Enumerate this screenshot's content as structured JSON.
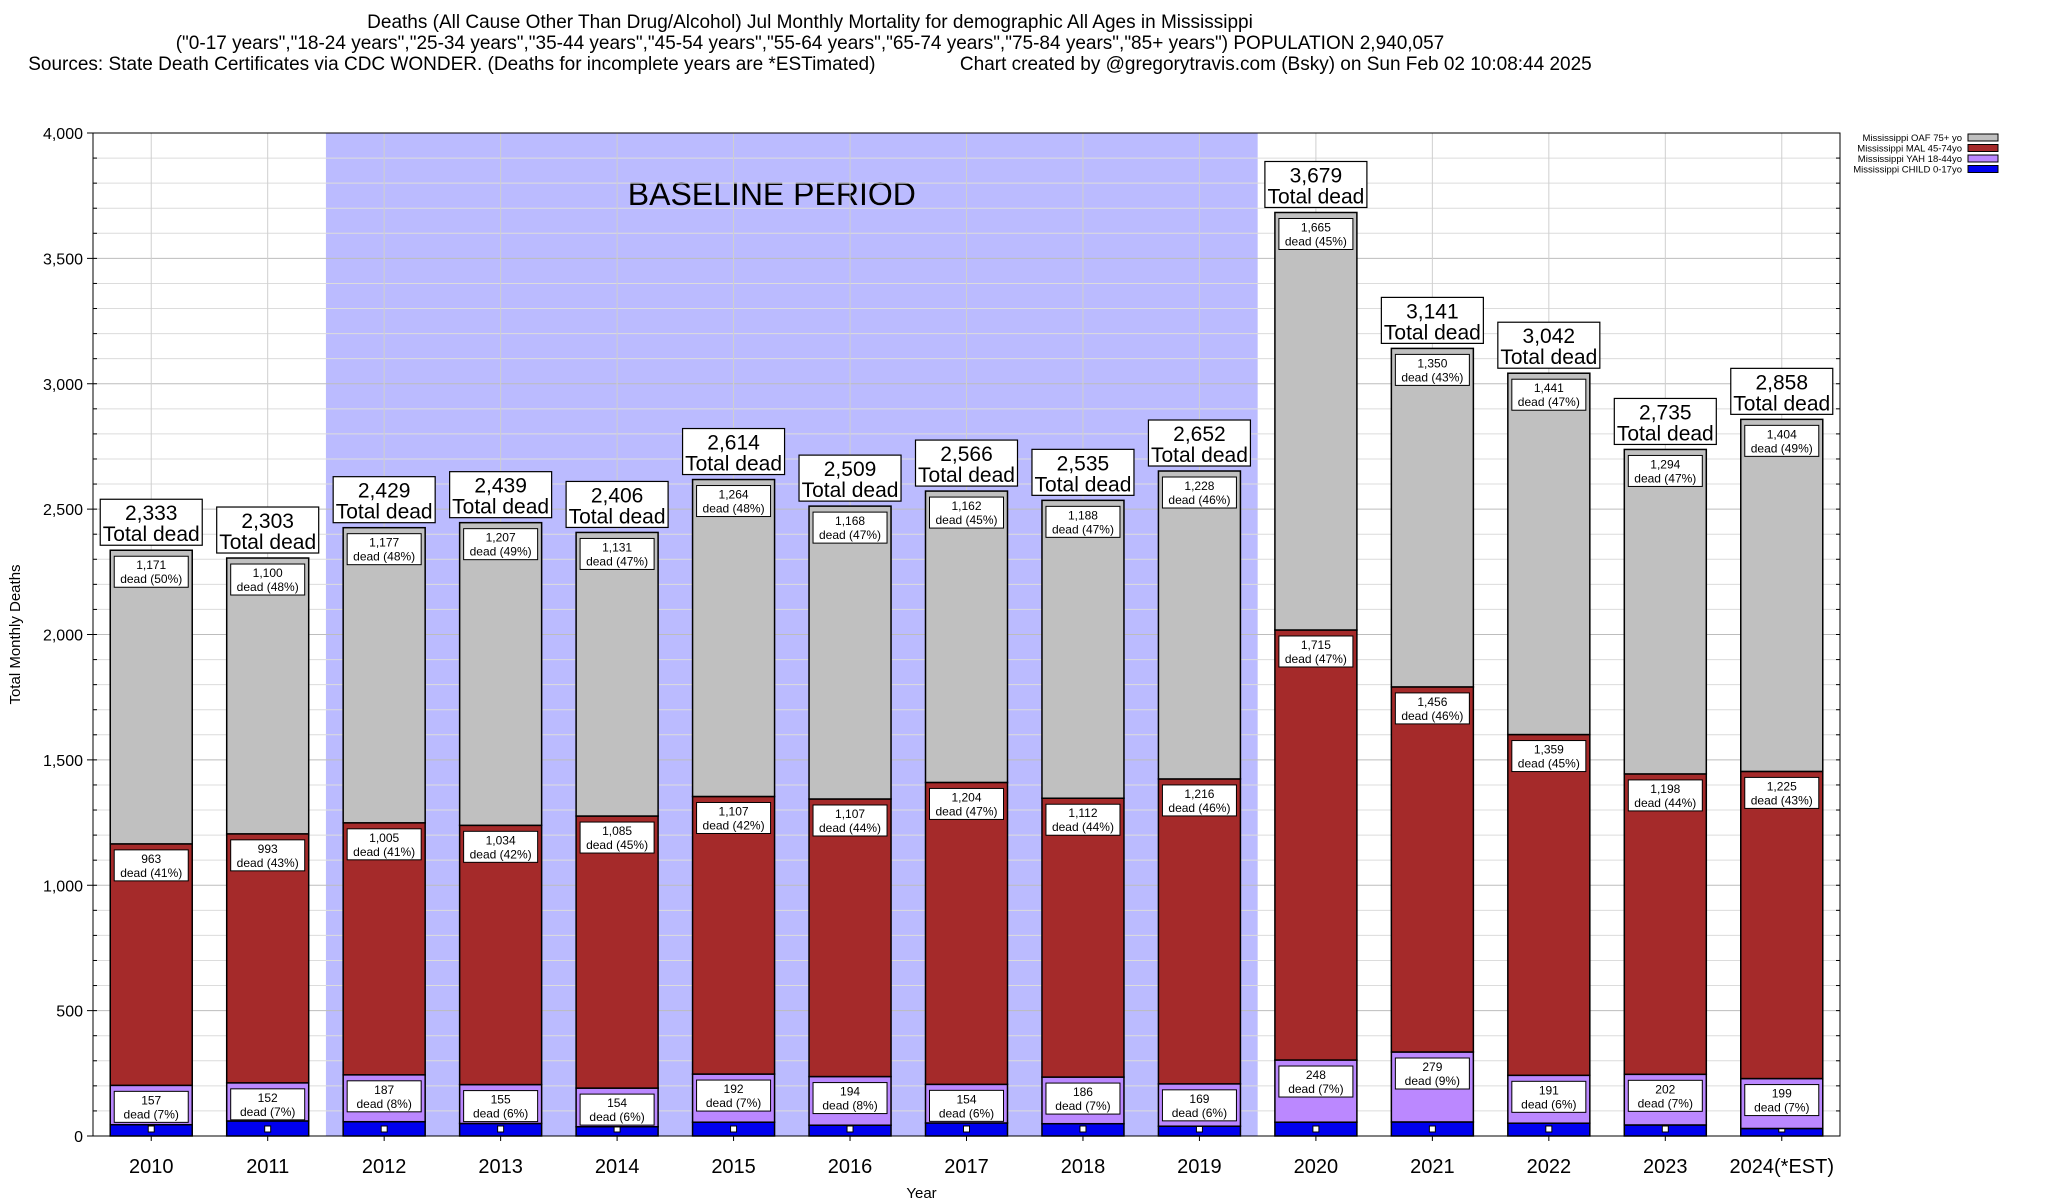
{
  "title": {
    "line1": "Deaths (All Cause Other Than Drug/Alcohol) Jul Monthly Mortality for demographic All Ages in Mississippi",
    "line2": "(\"0-17 years\",\"18-24 years\",\"25-34 years\",\"35-44 years\",\"45-54 years\",\"55-64 years\",\"65-74 years\",\"75-84 years\",\"85+ years\") POPULATION 2,940,057",
    "line3a": "Sources: State Death Certificates via CDC WONDER. (Deaths for incomplete years are *ESTimated)",
    "line3b": "Chart created by @gregorytravis.com (Bsky) on Sun Feb 02 10:08:44 2025"
  },
  "chart_data": {
    "type": "bar",
    "stacked": true,
    "categories": [
      "2010",
      "2011",
      "2012",
      "2013",
      "2014",
      "2015",
      "2016",
      "2017",
      "2018",
      "2019",
      "2020",
      "2021",
      "2022",
      "2023",
      "2024(*EST)"
    ],
    "series": [
      {
        "name": "Mississippi CHILD 0-17yo",
        "color": "#0000ee",
        "values": [
          45,
          60,
          57,
          50,
          37,
          55,
          43,
          52,
          49,
          39,
          55,
          56,
          51,
          44,
          30
        ]
      },
      {
        "name": "Mississippi YAH 18-44yo",
        "color": "#bb88ff",
        "values": [
          157,
          152,
          187,
          155,
          154,
          192,
          194,
          154,
          186,
          169,
          248,
          279,
          191,
          202,
          199
        ],
        "labels": [
          "157\ndead (7%)",
          "152\ndead (7%)",
          "187\ndead (8%)",
          "155\ndead (6%)",
          "154\ndead (6%)",
          "192\ndead (7%)",
          "194\ndead (8%)",
          "154\ndead (6%)",
          "186\ndead (7%)",
          "169\ndead (6%)",
          "248\ndead (7%)",
          "279\ndead (9%)",
          "191\ndead (6%)",
          "202\ndead (7%)",
          "199\ndead (7%)"
        ]
      },
      {
        "name": "Mississippi MAL 45-74yo",
        "color": "#a52a2a",
        "values": [
          963,
          993,
          1005,
          1034,
          1085,
          1107,
          1107,
          1204,
          1112,
          1216,
          1715,
          1456,
          1359,
          1198,
          1225
        ],
        "labels": [
          "963\ndead (41%)",
          "993\ndead (43%)",
          "1,005\ndead (41%)",
          "1,034\ndead (42%)",
          "1,085\ndead (45%)",
          "1,107\ndead (42%)",
          "1,107\ndead (44%)",
          "1,204\ndead (47%)",
          "1,112\ndead (44%)",
          "1,216\ndead (46%)",
          "1,715\ndead (47%)",
          "1,456\ndead (46%)",
          "1,359\ndead (45%)",
          "1,198\ndead (44%)",
          "1,225\ndead (43%)"
        ]
      },
      {
        "name": "Mississippi OAF 75+ yo",
        "color": "#c0c0c0",
        "values": [
          1171,
          1100,
          1177,
          1207,
          1131,
          1264,
          1168,
          1162,
          1188,
          1228,
          1665,
          1350,
          1441,
          1294,
          1404
        ],
        "labels": [
          "1,171\ndead (50%)",
          "1,100\ndead (48%)",
          "1,177\ndead (48%)",
          "1,207\ndead (49%)",
          "1,131\ndead (47%)",
          "1,264\ndead (48%)",
          "1,168\ndead (47%)",
          "1,162\ndead (45%)",
          "1,188\ndead (47%)",
          "1,228\ndead (46%)",
          "1,665\ndead (45%)",
          "1,350\ndead (43%)",
          "1,441\ndead (47%)",
          "1,294\ndead (47%)",
          "1,404\ndead (49%)"
        ]
      }
    ],
    "totals": [
      2333,
      2303,
      2429,
      2439,
      2406,
      2614,
      2509,
      2566,
      2535,
      2652,
      3679,
      3141,
      3042,
      2735,
      2858
    ],
    "total_labels": [
      "2,333",
      "2,303",
      "2,429",
      "2,439",
      "2,406",
      "2,614",
      "2,509",
      "2,566",
      "2,535",
      "2,652",
      "3,679",
      "3,141",
      "3,042",
      "2,735",
      "2,858"
    ],
    "total_suffix": "Total dead",
    "xlabel": "Year",
    "ylabel": "Total Monthly Deaths",
    "ylim": [
      0,
      4000
    ],
    "yticks": [
      0,
      500,
      1000,
      1500,
      2000,
      2500,
      3000,
      3500,
      4000
    ],
    "ytick_labels": [
      "0",
      "500",
      "1,000",
      "1,500",
      "2,000",
      "2,500",
      "3,000",
      "3,500",
      "4,000"
    ],
    "baseline": {
      "label": "BASELINE PERIOD",
      "from": "2012",
      "to": "2019",
      "color": "#bbbbff"
    },
    "grid": true,
    "legend_position": "top-right"
  }
}
